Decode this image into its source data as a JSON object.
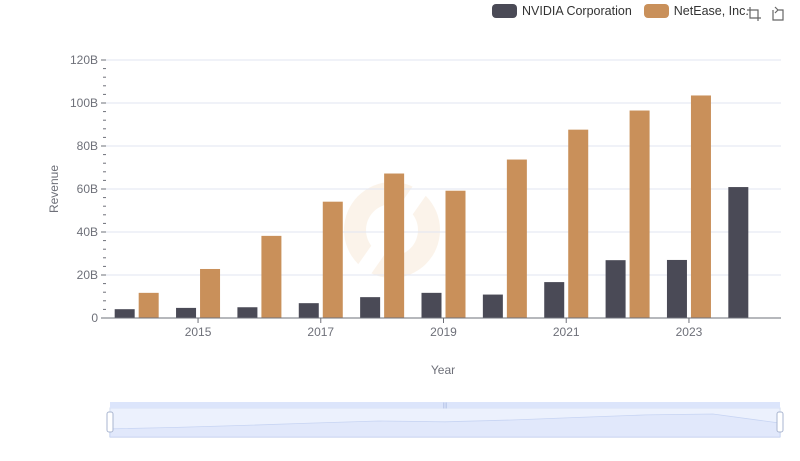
{
  "chart_data": {
    "type": "bar",
    "title": "",
    "xlabel": "Year",
    "ylabel": "Revenue",
    "ylim": [
      0,
      120
    ],
    "y_unit_suffix": "B",
    "y_ticks": [
      0,
      20,
      40,
      60,
      80,
      100,
      120
    ],
    "y_tick_labels": [
      "0",
      "20B",
      "40B",
      "60B",
      "80B",
      "100B",
      "120B"
    ],
    "categories": [
      "2014",
      "2015",
      "2016",
      "2017",
      "2018",
      "2019",
      "2020",
      "2021",
      "2022",
      "2023",
      "2024"
    ],
    "x_tick_labels": [
      "2015",
      "2017",
      "2019",
      "2021",
      "2023"
    ],
    "series": [
      {
        "name": "NVIDIA Corporation",
        "color": "#4a4a56",
        "values": [
          4.1,
          4.7,
          5.0,
          6.9,
          9.7,
          11.7,
          10.9,
          16.7,
          26.9,
          27.0,
          60.9
        ]
      },
      {
        "name": "NetEase, Inc.",
        "color": "#c9905a",
        "values": [
          11.7,
          22.8,
          38.2,
          54.1,
          67.2,
          59.2,
          73.7,
          87.6,
          96.5,
          103.5,
          null
        ]
      }
    ]
  },
  "legend": {
    "items": [
      {
        "label": "NVIDIA Corporation",
        "color": "#4a4a56"
      },
      {
        "label": "NetEase, Inc.",
        "color": "#c9905a"
      }
    ]
  },
  "toolbox": {
    "zoom_icon": "zoom-icon",
    "restore_icon": "restore-icon"
  },
  "data_zoom": {
    "start_percent": 0,
    "end_percent": 100,
    "fill_color": "#dce5fb",
    "border_color": "#d2dbee"
  }
}
